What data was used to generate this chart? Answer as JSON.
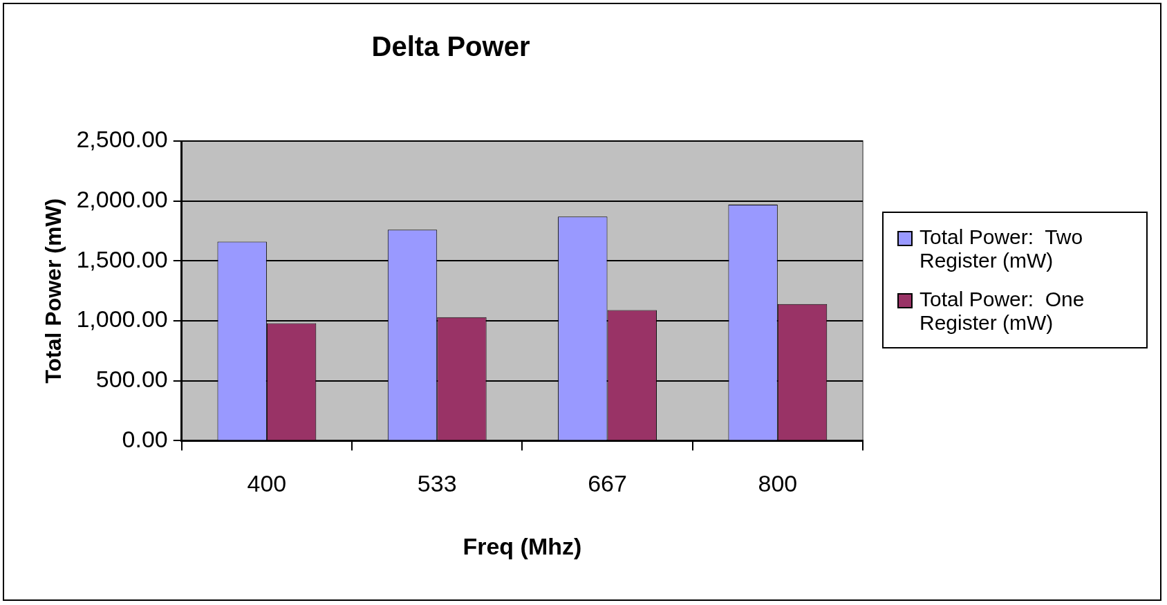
{
  "chart_data": {
    "type": "bar",
    "title": "Delta Power",
    "xlabel": "Freq (Mhz)",
    "ylabel": "Total Power (mW)",
    "categories": [
      "400",
      "533",
      "667",
      "800"
    ],
    "series": [
      {
        "name": "Total Power:  Two Register (mW)",
        "color": "#9999ff",
        "values": [
          1660,
          1760,
          1870,
          1970
        ]
      },
      {
        "name": "Total Power:  One Register (mW)",
        "color": "#993366",
        "values": [
          980,
          1030,
          1090,
          1140
        ]
      }
    ],
    "ylim": [
      0,
      2500
    ],
    "yticks": [
      {
        "value": 0,
        "label": "0.00"
      },
      {
        "value": 500,
        "label": "500.00"
      },
      {
        "value": 1000,
        "label": "1,000.00"
      },
      {
        "value": 1500,
        "label": "1,500.00"
      },
      {
        "value": 2000,
        "label": "2,000.00"
      },
      {
        "value": 2500,
        "label": "2,500.00"
      }
    ],
    "grid": "y",
    "legend": "right"
  }
}
